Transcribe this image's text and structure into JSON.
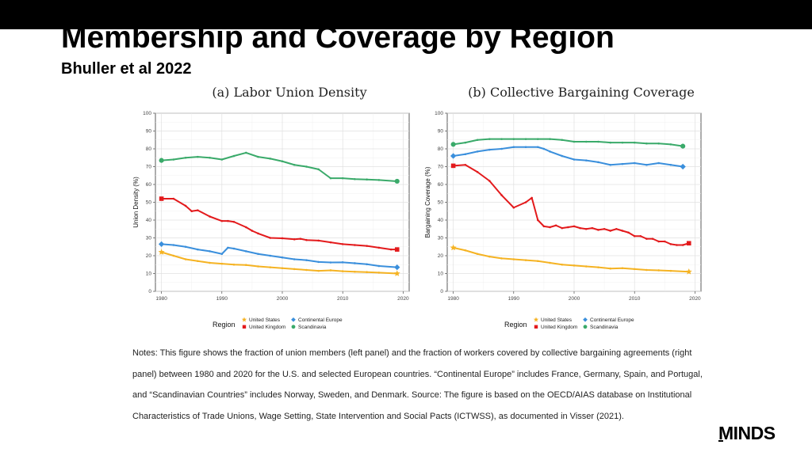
{
  "slide": {
    "title": "Membership and Coverage by Region",
    "subtitle": "Bhuller et al 2022",
    "notes": "Notes: This figure shows the fraction of union members (left panel) and the fraction of workers covered by collective bargaining agreements (right panel) between 1980 and 2020 for the U.S. and selected European countries. “Continental Europe” includes France, Germany, Spain, and Portugal, and “Scandinavian Countries” includes Norway, Sweden, and Denmark. Source: The figure is based on the OECD/AIAS database on Institutional Characteristics of Trade Unions, Wage Setting, State Intervention and Social Pacts (ICTWSS), as documented in Visser (2021).",
    "logo": "MINDS"
  },
  "colors": {
    "United States": "#f5b323",
    "United Kingdom": "#e31a1c",
    "Continental Europe": "#3a8fdc",
    "Scandinavia": "#3aaa6a"
  },
  "chart_data": [
    {
      "type": "line",
      "title": "(a) Labor Union Density",
      "xlabel": "",
      "ylabel": "Union Density (%)",
      "xlim": [
        1979,
        2021
      ],
      "ylim": [
        0,
        100
      ],
      "xticks": [
        1980,
        1990,
        2000,
        2010,
        2020
      ],
      "yticks": [
        0,
        10,
        20,
        30,
        40,
        50,
        60,
        70,
        80,
        90,
        100
      ],
      "grid": true,
      "legend": {
        "title": "Region",
        "position": "bottom"
      },
      "series": [
        {
          "name": "United States",
          "marker": "star",
          "x": [
            1980,
            1982,
            1984,
            1986,
            1988,
            1990,
            1992,
            1994,
            1996,
            1998,
            2000,
            2002,
            2004,
            2006,
            2008,
            2010,
            2012,
            2014,
            2016,
            2019
          ],
          "values": [
            22,
            20,
            18,
            17,
            16,
            15.5,
            15,
            14.8,
            14,
            13.5,
            13,
            12.5,
            12,
            11.5,
            11.8,
            11.3,
            11,
            10.8,
            10.5,
            10
          ]
        },
        {
          "name": "United Kingdom",
          "marker": "square",
          "x": [
            1980,
            1982,
            1984,
            1985,
            1986,
            1988,
            1990,
            1991,
            1992,
            1994,
            1995,
            1996,
            1998,
            2000,
            2002,
            2003,
            2004,
            2006,
            2008,
            2010,
            2012,
            2014,
            2016,
            2018,
            2019
          ],
          "values": [
            52,
            52,
            48,
            45,
            45.5,
            42,
            39.5,
            39.5,
            39,
            36,
            34,
            32.5,
            30,
            29.8,
            29.2,
            29.5,
            28.8,
            28.5,
            27.5,
            26.5,
            26,
            25.5,
            24.5,
            23.5,
            23.5
          ]
        },
        {
          "name": "Continental Europe",
          "marker": "diamond",
          "x": [
            1980,
            1982,
            1984,
            1986,
            1988,
            1990,
            1991,
            1992,
            1994,
            1996,
            1998,
            2000,
            2002,
            2004,
            2006,
            2008,
            2010,
            2012,
            2014,
            2016,
            2019
          ],
          "values": [
            26.5,
            26,
            25,
            23.5,
            22.5,
            21,
            24.5,
            24,
            22.5,
            21,
            20,
            19,
            18,
            17.5,
            16.5,
            16.2,
            16.3,
            15.8,
            15.2,
            14.2,
            13.5
          ]
        },
        {
          "name": "Scandinavia",
          "marker": "circle",
          "x": [
            1980,
            1982,
            1984,
            1986,
            1988,
            1990,
            1992,
            1994,
            1996,
            1998,
            2000,
            2002,
            2004,
            2006,
            2008,
            2010,
            2012,
            2014,
            2016,
            2019
          ],
          "values": [
            73.5,
            74,
            75,
            75.5,
            75,
            74,
            76,
            77.8,
            75.5,
            74.5,
            73,
            71,
            70,
            68.5,
            63.5,
            63.5,
            63,
            62.8,
            62.5,
            61.8
          ]
        }
      ]
    },
    {
      "type": "line",
      "title": "(b) Collective Bargaining Coverage",
      "xlabel": "",
      "ylabel": "Bargaining Coverage (%)",
      "xlim": [
        1979,
        2021
      ],
      "ylim": [
        0,
        100
      ],
      "xticks": [
        1980,
        1990,
        2000,
        2010,
        2020
      ],
      "yticks": [
        0,
        10,
        20,
        30,
        40,
        50,
        60,
        70,
        80,
        90,
        100
      ],
      "grid": true,
      "legend": {
        "title": "Region",
        "position": "bottom"
      },
      "series": [
        {
          "name": "United States",
          "marker": "star",
          "x": [
            1980,
            1982,
            1984,
            1986,
            1988,
            1990,
            1992,
            1994,
            1996,
            1998,
            2000,
            2002,
            2004,
            2006,
            2008,
            2010,
            2012,
            2014,
            2016,
            2019
          ],
          "values": [
            24.5,
            23,
            21,
            19.5,
            18.5,
            18,
            17.5,
            17,
            16,
            15,
            14.5,
            14,
            13.5,
            12.8,
            13,
            12.5,
            12,
            11.8,
            11.5,
            11
          ]
        },
        {
          "name": "United Kingdom",
          "marker": "square",
          "x": [
            1980,
            1982,
            1984,
            1986,
            1988,
            1990,
            1992,
            1993,
            1994,
            1995,
            1996,
            1997,
            1998,
            1999,
            2000,
            2001,
            2002,
            2003,
            2004,
            2005,
            2006,
            2007,
            2008,
            2009,
            2010,
            2011,
            2012,
            2013,
            2014,
            2015,
            2016,
            2017,
            2018,
            2019
          ],
          "values": [
            70.5,
            71,
            67,
            62,
            54,
            47,
            50,
            52.5,
            40,
            36.5,
            36,
            37,
            35.5,
            36,
            36.5,
            35.5,
            35,
            35.5,
            34.5,
            35,
            34,
            35,
            34,
            33,
            31,
            31,
            29.5,
            29.5,
            28,
            28,
            26.5,
            26,
            26,
            27
          ]
        },
        {
          "name": "Continental Europe",
          "marker": "diamond",
          "x": [
            1980,
            1982,
            1984,
            1986,
            1988,
            1990,
            1992,
            1994,
            1995,
            1996,
            1998,
            2000,
            2002,
            2004,
            2006,
            2008,
            2010,
            2012,
            2014,
            2016,
            2018
          ],
          "values": [
            76,
            77,
            78.5,
            79.5,
            80,
            81,
            81,
            81,
            80,
            78.5,
            76,
            74,
            73.5,
            72.5,
            71,
            71.5,
            72,
            71,
            72,
            71,
            70
          ]
        },
        {
          "name": "Scandinavia",
          "marker": "circle",
          "x": [
            1980,
            1982,
            1984,
            1986,
            1988,
            1990,
            1992,
            1994,
            1996,
            1998,
            2000,
            2002,
            2004,
            2006,
            2008,
            2010,
            2012,
            2014,
            2016,
            2018
          ],
          "values": [
            82.5,
            83.5,
            85,
            85.5,
            85.5,
            85.5,
            85.5,
            85.5,
            85.5,
            85,
            84,
            84,
            84,
            83.5,
            83.5,
            83.5,
            83,
            83,
            82.5,
            81.5
          ]
        }
      ]
    }
  ]
}
